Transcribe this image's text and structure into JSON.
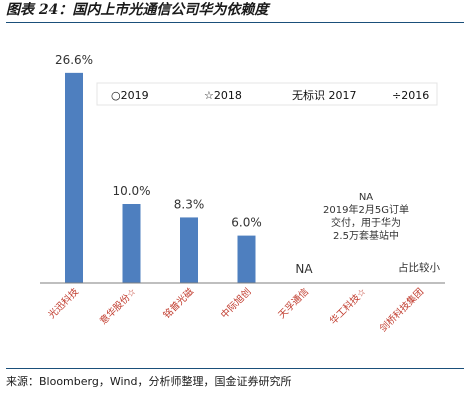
{
  "figure": {
    "title": "图表 24：国内上市光通信公司华为依赖度",
    "source": "来源：Bloomberg，Wind，分析师整理，国金证券研究所"
  },
  "colors": {
    "bar": "#4e7fbf",
    "axis": "#7f7f7f",
    "text": "#333333"
  },
  "chart_data": {
    "type": "bar",
    "categories": [
      "光迅科技",
      "意华股份☆",
      "铭普光磁",
      "中际旭创",
      "天孚通信",
      "华工科技☆",
      "剑桥科技集团"
    ],
    "values": [
      26.6,
      10.0,
      8.3,
      6.0,
      null,
      null,
      null
    ],
    "value_labels": [
      "26.6%",
      "10.0%",
      "8.3%",
      "6.0%",
      "NA",
      "",
      "占比较小"
    ],
    "legend": [
      "○2019",
      "☆2018",
      "无标识 2017",
      "÷2016"
    ],
    "legend_position": "top-right",
    "annotation": [
      "NA",
      "2019年2月5G订单",
      "交付，用于华为",
      "2.5万套基站中"
    ],
    "ylim": [
      0,
      30
    ],
    "grid": false
  }
}
